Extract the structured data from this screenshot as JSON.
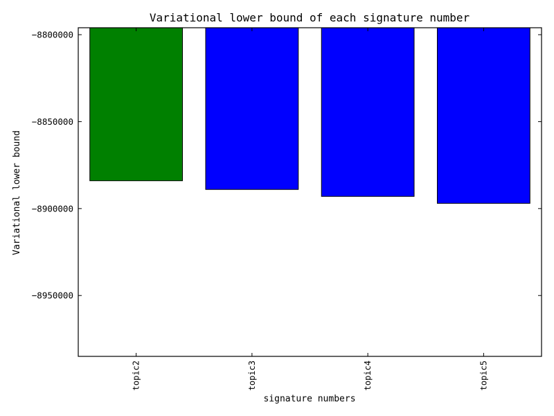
{
  "chart_data": {
    "type": "bar",
    "title": "Variational lower bound of each signature number",
    "xlabel": "signature numbers",
    "ylabel": "Variational lower bound",
    "categories": [
      "topic2",
      "topic3",
      "topic4",
      "topic5"
    ],
    "values": [
      -8884000,
      -8889000,
      -8893000,
      -8897000
    ],
    "bar_colors": [
      "#008000",
      "#0000ff",
      "#0000ff",
      "#0000ff"
    ],
    "ylim": [
      -8985000,
      -8796000
    ],
    "yticks": [
      -8800000,
      -8850000,
      -8900000,
      -8950000
    ],
    "ytick_labels": [
      "−8800000",
      "−8850000",
      "−8900000",
      "−8950000"
    ],
    "bar_baseline": "top",
    "grid": false
  }
}
